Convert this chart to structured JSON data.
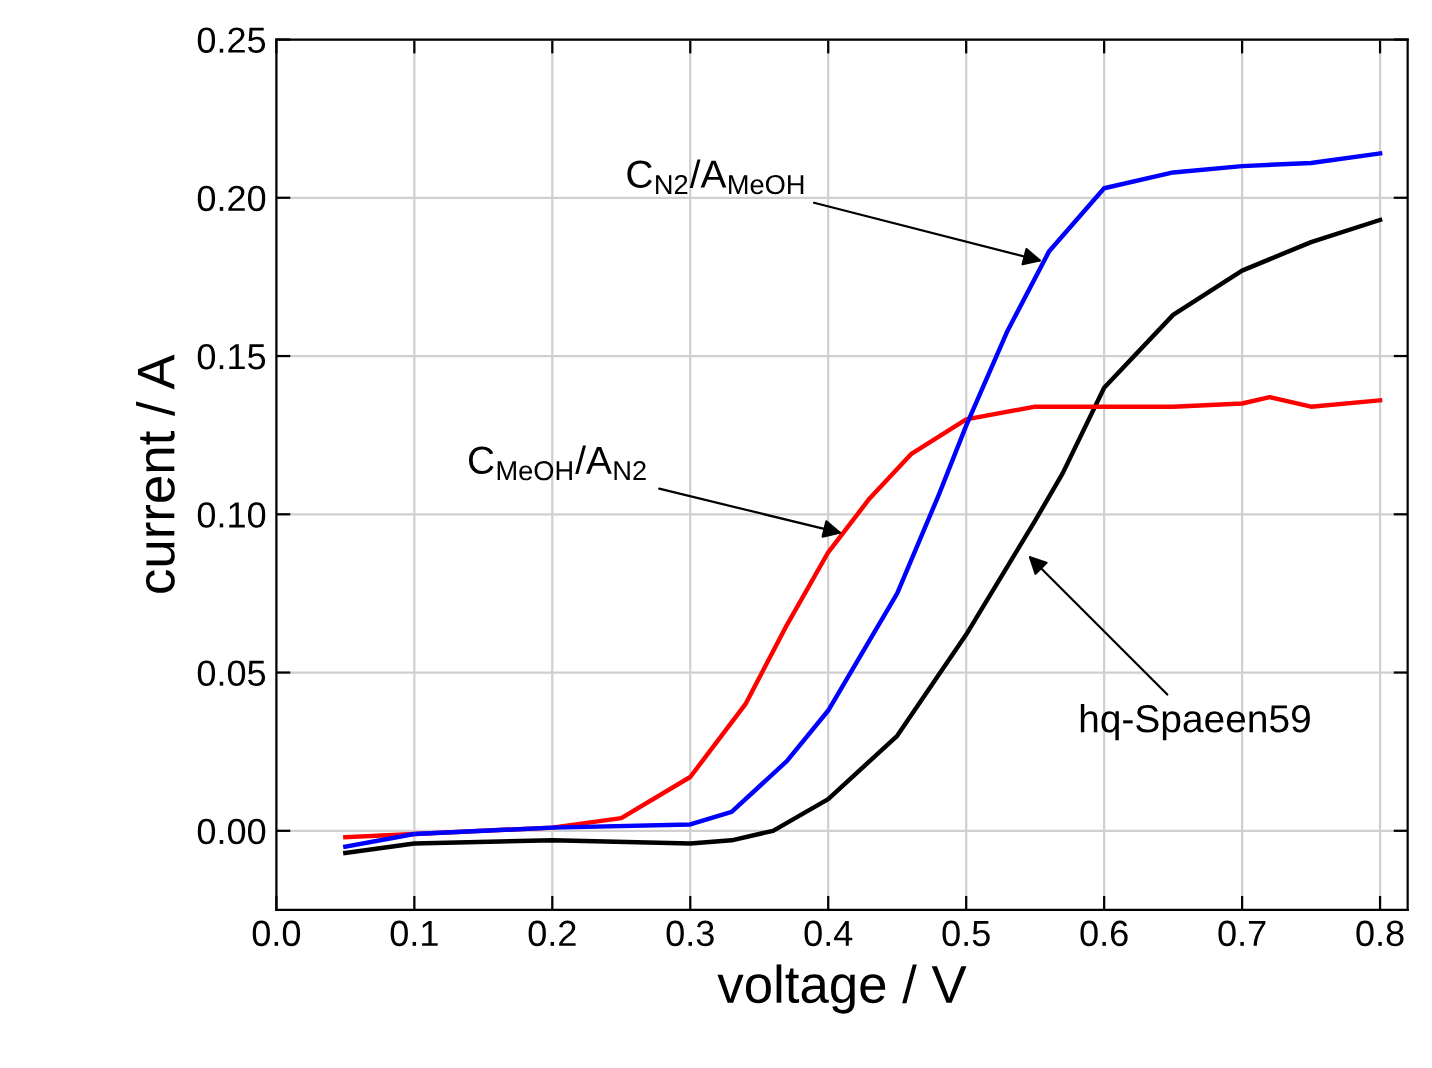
{
  "chart_data": {
    "type": "line",
    "xlabel": "voltage / V",
    "ylabel": "current / A",
    "xlim": [
      0,
      0.82
    ],
    "ylim": [
      -0.025,
      0.25
    ],
    "xticks": [
      {
        "value": 0,
        "label": "0.0"
      },
      0.1,
      0.2,
      0.3,
      0.4,
      0.5,
      0.6,
      0.7,
      0.8
    ],
    "yticks": [
      {
        "value": 0,
        "label": "0.00"
      },
      {
        "value": 0.05,
        "label": "0.05"
      },
      {
        "value": 0.1,
        "label": "0.10"
      },
      {
        "value": 0.15,
        "label": "0.15"
      },
      {
        "value": 0.2,
        "label": "0.20"
      },
      {
        "value": 0.25,
        "label": "0.25"
      }
    ],
    "grid": true,
    "legend": false,
    "marker": "none",
    "line_style": "solid",
    "series": [
      {
        "color": "#000000",
        "x": [
          0.05,
          0.1,
          0.2,
          0.3,
          0.33,
          0.36,
          0.4,
          0.45,
          0.5,
          0.55,
          0.57,
          0.6,
          0.65,
          0.7,
          0.75,
          0.8
        ],
        "values": [
          -0.007,
          -0.004,
          -0.003,
          -0.004,
          -0.003,
          0.0,
          0.01,
          0.03,
          0.062,
          0.098,
          0.113,
          0.14,
          0.163,
          0.177,
          0.186,
          0.193
        ]
      },
      {
        "color": "#ff0000",
        "x": [
          0.05,
          0.1,
          0.2,
          0.25,
          0.3,
          0.34,
          0.37,
          0.4,
          0.43,
          0.46,
          0.5,
          0.55,
          0.6,
          0.65,
          0.7,
          0.72,
          0.75,
          0.8
        ],
        "values": [
          -0.002,
          -0.001,
          0.001,
          0.004,
          0.017,
          0.04,
          0.065,
          0.088,
          0.105,
          0.119,
          0.13,
          0.134,
          0.134,
          0.134,
          0.135,
          0.137,
          0.134,
          0.136
        ]
      },
      {
        "color": "#0000ff",
        "x": [
          0.05,
          0.1,
          0.2,
          0.3,
          0.33,
          0.37,
          0.4,
          0.45,
          0.48,
          0.5,
          0.53,
          0.56,
          0.6,
          0.65,
          0.7,
          0.75,
          0.8
        ],
        "values": [
          -0.005,
          -0.001,
          0.001,
          0.002,
          0.006,
          0.022,
          0.038,
          0.075,
          0.106,
          0.128,
          0.158,
          0.183,
          0.203,
          0.208,
          0.21,
          0.211,
          0.214
        ]
      }
    ],
    "annotations": [
      {
        "text": "C$_{N2}$/A$_{MeOH}$",
        "x": 0.555,
        "y": 0.18
      },
      {
        "text": "C$_{MeOH}$/A$_{N2}$",
        "x": 0.41,
        "y": 0.094
      },
      {
        "text": "hq-Spaeen59",
        "x": 0.545,
        "y": 0.087
      }
    ]
  }
}
